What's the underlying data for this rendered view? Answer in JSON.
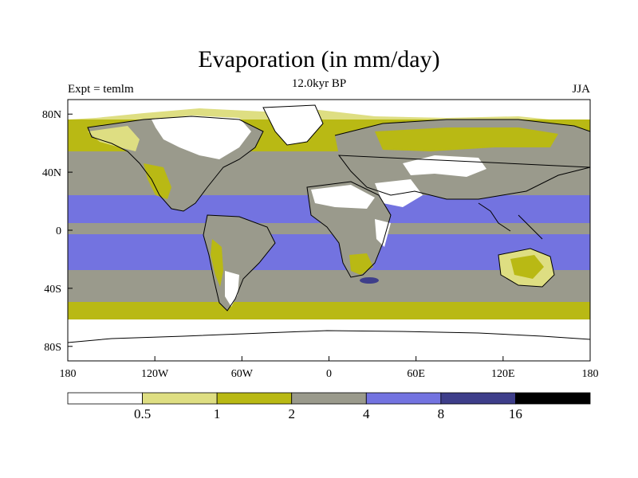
{
  "title": "Evaporation (in mm/day)",
  "subtitle": "12.0kyr BP",
  "experiment_label": "Expt = temlm",
  "season_label": "JJA",
  "colors": {
    "lt_0_5": "#ffffff",
    "c0_5_1": "#dede82",
    "c1_2": "#b9b914",
    "c2_4": "#9a9a8c",
    "c4_8": "#7373e0",
    "c8_16": "#3e3e8a",
    "gt_16": "#000000",
    "coast": "#000000"
  },
  "map": {
    "lon_min": -180,
    "lon_max": 180,
    "lat_min": -90,
    "lat_max": 90,
    "lon_ticks": [
      {
        "value": -180,
        "label": "180"
      },
      {
        "value": -120,
        "label": "120W"
      },
      {
        "value": -60,
        "label": "60W"
      },
      {
        "value": 0,
        "label": "0"
      },
      {
        "value": 60,
        "label": "60E"
      },
      {
        "value": 120,
        "label": "120E"
      },
      {
        "value": 180,
        "label": "180"
      }
    ],
    "lat_ticks": [
      {
        "value": 80,
        "label": "80N"
      },
      {
        "value": 40,
        "label": "40N"
      },
      {
        "value": 0,
        "label": "0"
      },
      {
        "value": -40,
        "label": "40S"
      },
      {
        "value": -80,
        "label": "80S"
      }
    ]
  },
  "colorbar": {
    "boundaries": [
      "0.5",
      "1",
      "2",
      "4",
      "8",
      "16"
    ],
    "units": "mm/day"
  }
}
